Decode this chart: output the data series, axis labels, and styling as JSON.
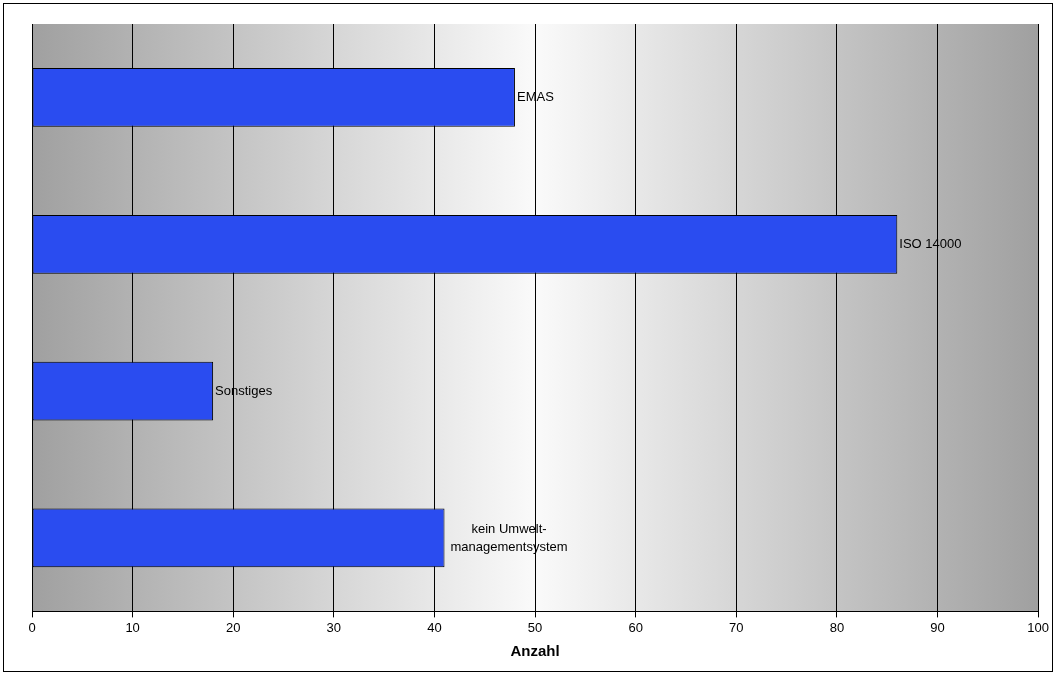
{
  "chart_data": {
    "type": "bar",
    "orientation": "horizontal",
    "xlabel": "Anzahl",
    "categories": [
      "EMAS",
      "ISO 14000",
      "Sonstiges",
      "kein Umwelt-managementsystem"
    ],
    "values": [
      48,
      86,
      18,
      41
    ],
    "color": "#2a4cf0",
    "xlim": [
      0,
      100
    ],
    "xticks": [
      0,
      10,
      20,
      30,
      40,
      50,
      60,
      70,
      80,
      90,
      100
    ],
    "grid": "x",
    "tick_labels": "x",
    "legend": false
  }
}
